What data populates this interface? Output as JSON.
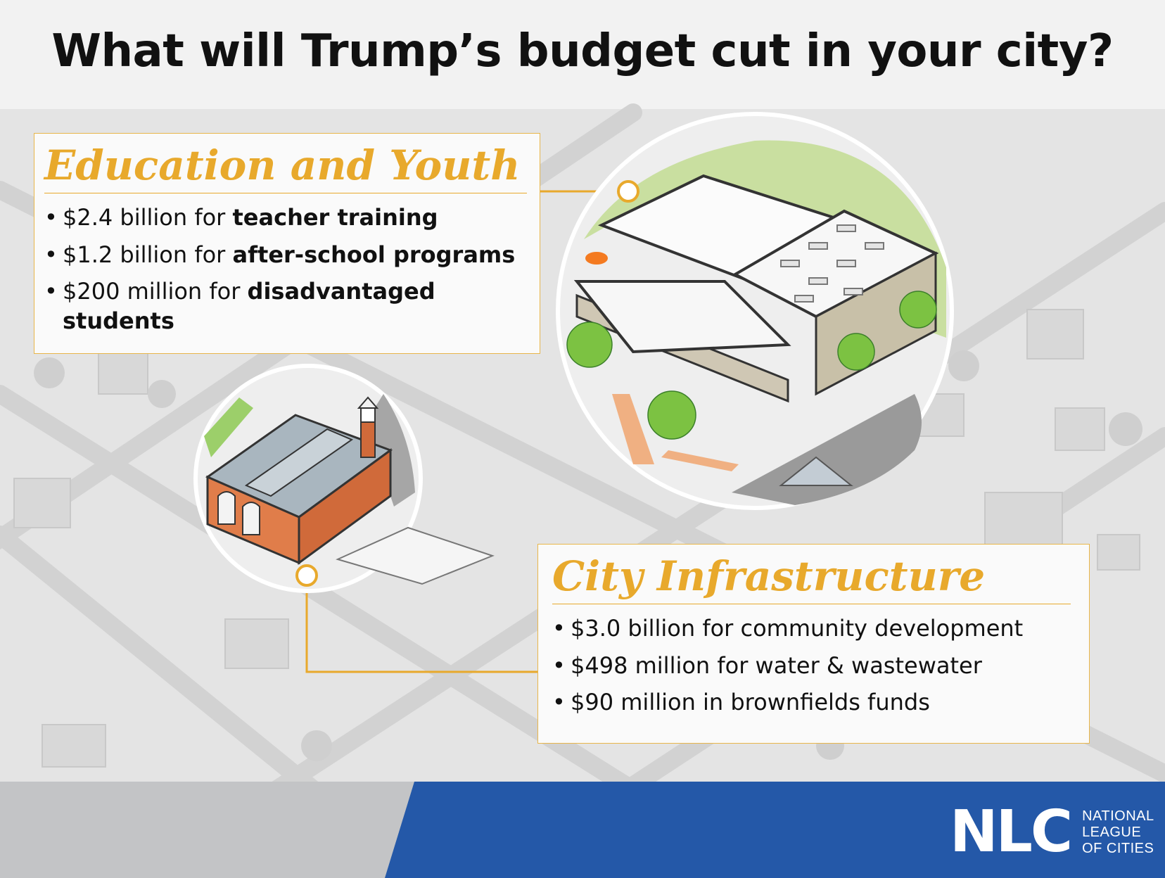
{
  "title": "What will Trump’s budget cut in your city?",
  "education": {
    "heading": "Education and Youth",
    "items": [
      {
        "prefix": "$2.4 billion for ",
        "bold": "teacher training"
      },
      {
        "prefix": "$1.2 billion for ",
        "bold": "after-school programs"
      },
      {
        "prefix": "$200 million for ",
        "bold": "disadvantaged students"
      }
    ]
  },
  "infrastructure": {
    "heading": "City Infrastructure",
    "items": [
      {
        "text": "$3.0 billion for community development"
      },
      {
        "text": "$498 million for water & wastewater"
      },
      {
        "text": "$90 million in brownfields funds"
      }
    ]
  },
  "logo": {
    "mark": "NLC",
    "line1": "NATIONAL",
    "line2": "LEAGUE",
    "line3": "OF CITIES"
  },
  "colors": {
    "accent": "#e8a92c",
    "footer_blue": "#2458a8",
    "footer_grey": "#c3c4c6"
  }
}
